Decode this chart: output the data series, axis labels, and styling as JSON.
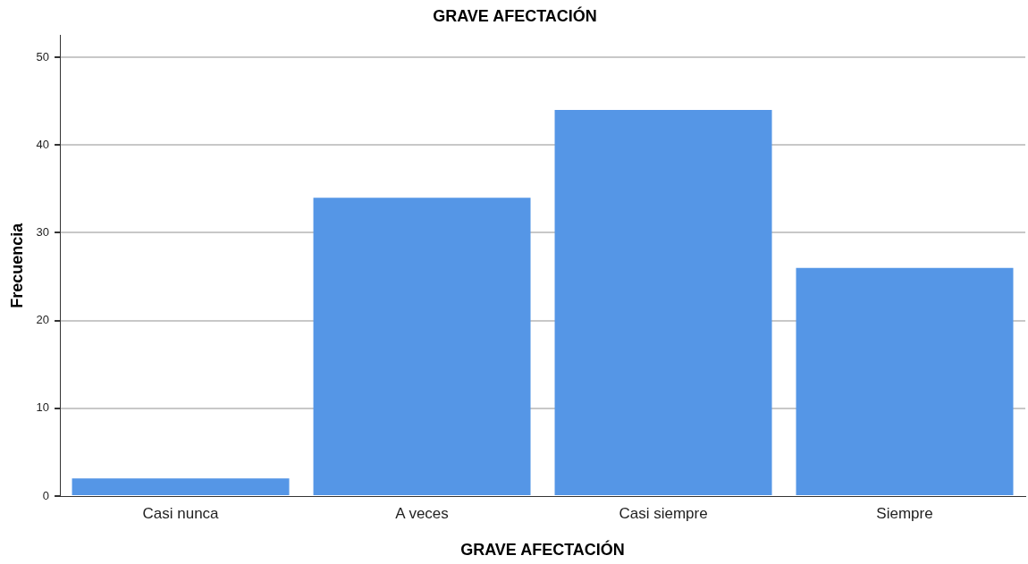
{
  "chart_data": {
    "type": "bar",
    "title": "GRAVE AFECTACIÓN",
    "xlabel": "GRAVE AFECTACIÓN",
    "ylabel": "Frecuencia",
    "categories": [
      "Casi nunca",
      "A veces",
      "Casi siempre",
      "Siempre"
    ],
    "values": [
      2,
      34,
      44,
      26
    ],
    "color": "#5596e6",
    "ylim": [
      0,
      52.5
    ],
    "yticks": [
      0,
      10,
      20,
      30,
      40,
      50
    ],
    "grid": "y",
    "legend": false
  }
}
